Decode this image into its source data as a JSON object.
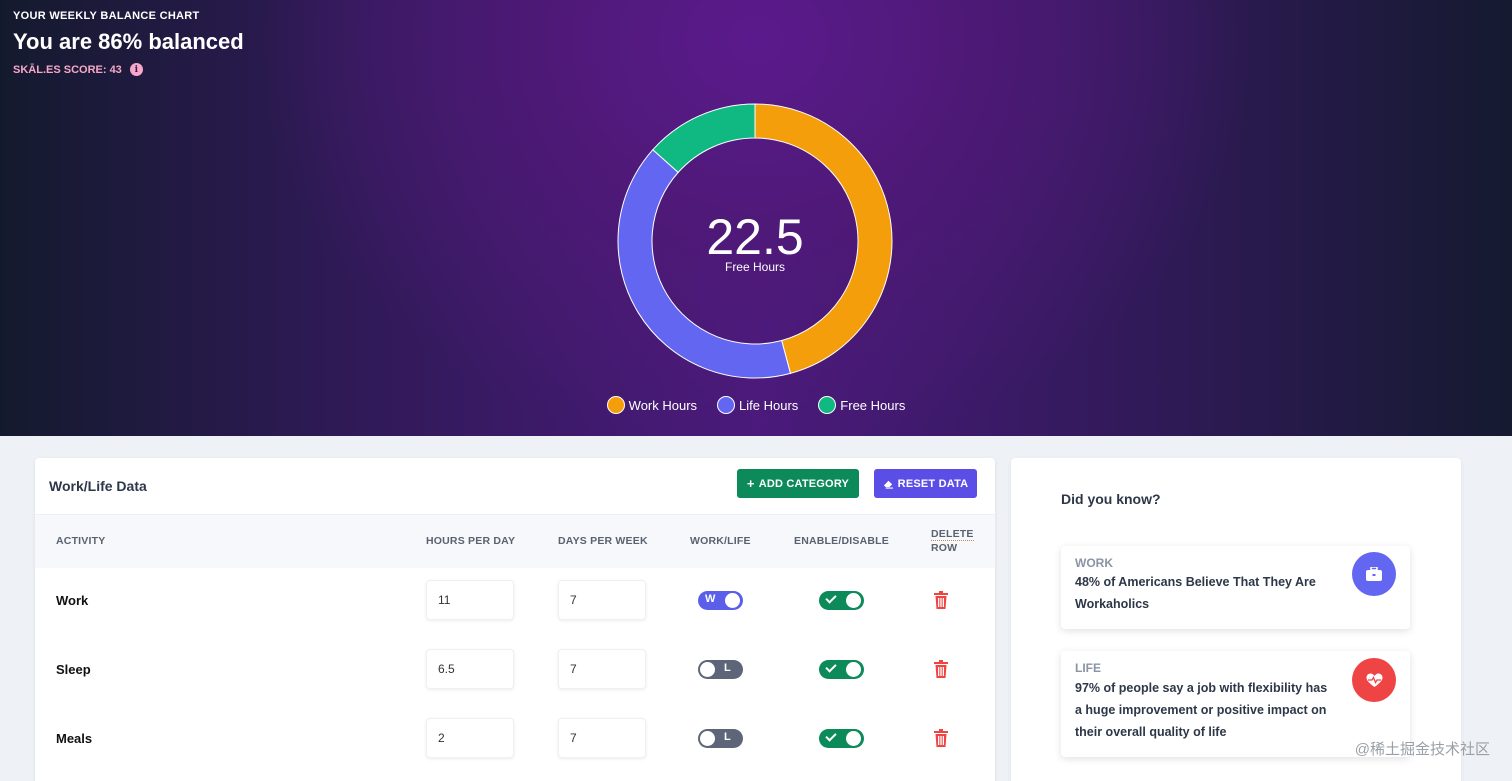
{
  "header": {
    "eyebrow": "YOUR WEEKLY BALANCE CHART",
    "title": "You are 86% balanced",
    "score": "SKĀL.ES SCORE: 43"
  },
  "chart_data": {
    "type": "pie",
    "categories": [
      "Work Hours",
      "Life Hours",
      "Free Hours"
    ],
    "values": [
      77,
      68.5,
      22.5
    ],
    "colors": [
      "#f59e0b",
      "#6366f1",
      "#10b981"
    ],
    "center_value": "22.5",
    "center_label": "Free Hours",
    "legend_position": "bottom"
  },
  "data_card": {
    "title": "Work/Life Data",
    "add_label": "ADD CATEGORY",
    "reset_label": "RESET DATA",
    "columns": {
      "activity": "ACTIVITY",
      "hours": "HOURS PER DAY",
      "days": "DAYS PER WEEK",
      "worklife": "WORK/LIFE",
      "enable": "ENABLE/DISABLE",
      "delete_1": "DELETE",
      "delete_2": "ROW"
    },
    "rows": [
      {
        "activity": "Work",
        "hours": "11",
        "days": "7",
        "type_label": "W",
        "type": "work",
        "enabled": true
      },
      {
        "activity": "Sleep",
        "hours": "6.5",
        "days": "7",
        "type_label": "L",
        "type": "life",
        "enabled": true
      },
      {
        "activity": "Meals",
        "hours": "2",
        "days": "7",
        "type_label": "L",
        "type": "life",
        "enabled": true
      }
    ]
  },
  "know_card": {
    "title": "Did you know?",
    "facts": [
      {
        "category": "WORK",
        "text": "48% of Americans Believe That They Are Workaholics",
        "icon": "briefcase-icon",
        "color": "#6366f1"
      },
      {
        "category": "LIFE",
        "text": "97% of people say a job with flexibility has a huge improvement or positive impact on their overall quality of life",
        "icon": "heart-pulse-icon",
        "color": "#ef4444"
      }
    ]
  },
  "watermark": "@稀土掘金技术社区"
}
